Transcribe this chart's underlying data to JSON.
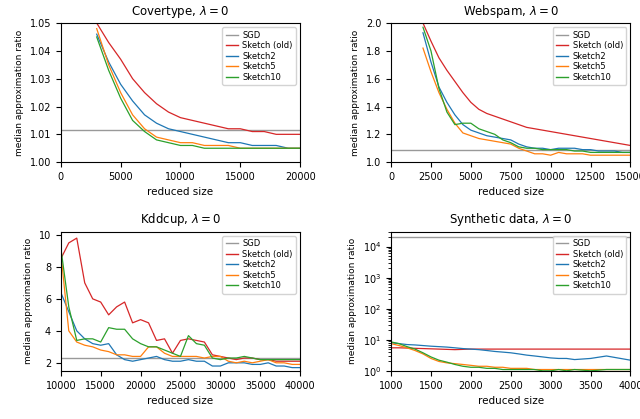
{
  "titles": [
    "Covertype, $\\lambda = 0$",
    "Webspam, $\\lambda = 0$",
    "Kddcup, $\\lambda = 0$",
    "Synthetic data, $\\lambda = 0$"
  ],
  "ylabel": "median approximation ratio",
  "xlabel": "reduced size",
  "colors": {
    "SGD": "#999999",
    "Sketch (old)": "#d62728",
    "Sketch2": "#1f77b4",
    "Sketch5": "#ff7f0e",
    "Sketch10": "#2ca02c"
  },
  "legend_labels": [
    "SGD",
    "Sketch (old)",
    "Sketch2",
    "Sketch5",
    "Sketch10"
  ],
  "covertype": {
    "xlim": [
      0,
      20000
    ],
    "ylim": [
      1.0,
      1.05
    ],
    "yticks": [
      1.0,
      1.01,
      1.02,
      1.03,
      1.04,
      1.05
    ],
    "xticks": [
      0,
      5000,
      10000,
      15000,
      20000
    ],
    "sgd_y": 1.0115,
    "sketch_old_x": [
      3000,
      4000,
      5000,
      6000,
      7000,
      8000,
      9000,
      10000,
      11000,
      12000,
      13000,
      14000,
      15000,
      16000,
      17000,
      18000,
      19000,
      20000
    ],
    "sketch_old_y": [
      1.05,
      1.043,
      1.037,
      1.03,
      1.025,
      1.021,
      1.018,
      1.016,
      1.015,
      1.014,
      1.013,
      1.012,
      1.012,
      1.011,
      1.011,
      1.01,
      1.01,
      1.01
    ],
    "sketch2_x": [
      3000,
      4000,
      5000,
      6000,
      7000,
      8000,
      9000,
      10000,
      11000,
      12000,
      13000,
      14000,
      15000,
      16000,
      17000,
      18000,
      19000,
      20000
    ],
    "sketch2_y": [
      1.046,
      1.036,
      1.028,
      1.022,
      1.017,
      1.014,
      1.012,
      1.011,
      1.01,
      1.009,
      1.008,
      1.007,
      1.007,
      1.006,
      1.006,
      1.006,
      1.005,
      1.005
    ],
    "sketch5_x": [
      3000,
      4000,
      5000,
      6000,
      7000,
      8000,
      9000,
      10000,
      11000,
      12000,
      13000,
      14000,
      15000,
      16000,
      17000,
      18000,
      19000,
      20000
    ],
    "sketch5_y": [
      1.048,
      1.035,
      1.025,
      1.017,
      1.012,
      1.009,
      1.008,
      1.007,
      1.007,
      1.006,
      1.006,
      1.006,
      1.005,
      1.005,
      1.005,
      1.005,
      1.005,
      1.005
    ],
    "sketch10_x": [
      3000,
      4000,
      5000,
      6000,
      7000,
      8000,
      9000,
      10000,
      11000,
      12000,
      13000,
      14000,
      15000,
      16000,
      17000,
      18000,
      19000,
      20000
    ],
    "sketch10_y": [
      1.045,
      1.033,
      1.023,
      1.015,
      1.011,
      1.008,
      1.007,
      1.006,
      1.006,
      1.005,
      1.005,
      1.005,
      1.005,
      1.005,
      1.005,
      1.005,
      1.005,
      1.005
    ]
  },
  "webspam": {
    "xlim": [
      0,
      15000
    ],
    "ylim": [
      1.0,
      2.0
    ],
    "yticks": [
      1.0,
      1.2,
      1.4,
      1.6,
      1.8,
      2.0
    ],
    "xticks": [
      0,
      2500,
      5000,
      7500,
      10000,
      12500,
      15000
    ],
    "sgd_y": 1.09,
    "sketch_old_x": [
      2000,
      2500,
      3000,
      3500,
      4000,
      4500,
      5000,
      5500,
      6000,
      6500,
      7000,
      7500,
      8000,
      8500,
      9000,
      9500,
      10000,
      10500,
      11000,
      11500,
      12000,
      12500,
      13000,
      13500,
      14000,
      14500,
      15000
    ],
    "sketch_old_y": [
      2.0,
      1.87,
      1.75,
      1.66,
      1.58,
      1.5,
      1.43,
      1.38,
      1.35,
      1.33,
      1.31,
      1.29,
      1.27,
      1.25,
      1.24,
      1.23,
      1.22,
      1.21,
      1.2,
      1.19,
      1.18,
      1.17,
      1.16,
      1.15,
      1.14,
      1.13,
      1.12
    ],
    "sketch2_x": [
      2000,
      2500,
      3000,
      3500,
      4000,
      4500,
      5000,
      5500,
      6000,
      6500,
      7000,
      7500,
      8000,
      8500,
      9000,
      9500,
      10000,
      10500,
      11000,
      11500,
      12000,
      12500,
      13000,
      13500,
      14000,
      14500,
      15000
    ],
    "sketch2_y": [
      1.93,
      1.72,
      1.54,
      1.43,
      1.34,
      1.27,
      1.23,
      1.21,
      1.19,
      1.18,
      1.17,
      1.16,
      1.13,
      1.11,
      1.1,
      1.1,
      1.09,
      1.1,
      1.1,
      1.1,
      1.09,
      1.09,
      1.08,
      1.08,
      1.08,
      1.07,
      1.07
    ],
    "sketch5_x": [
      2000,
      2500,
      3000,
      3500,
      4000,
      4500,
      5000,
      5500,
      6000,
      6500,
      7000,
      7500,
      8000,
      8500,
      9000,
      9500,
      10000,
      10500,
      11000,
      11500,
      12000,
      12500,
      13000,
      13500,
      14000,
      14500,
      15000
    ],
    "sketch5_y": [
      1.82,
      1.65,
      1.5,
      1.38,
      1.28,
      1.21,
      1.19,
      1.17,
      1.16,
      1.15,
      1.14,
      1.13,
      1.1,
      1.08,
      1.06,
      1.06,
      1.05,
      1.07,
      1.06,
      1.06,
      1.06,
      1.05,
      1.05,
      1.05,
      1.05,
      1.05,
      1.05
    ],
    "sketch10_x": [
      2000,
      2500,
      3000,
      3500,
      4000,
      4500,
      5000,
      5500,
      6000,
      6500,
      7000,
      7500,
      8000,
      8500,
      9000,
      9500,
      10000,
      10500,
      11000,
      11500,
      12000,
      12500,
      13000,
      13500,
      14000,
      14500,
      15000
    ],
    "sketch10_y": [
      1.97,
      1.8,
      1.53,
      1.36,
      1.27,
      1.28,
      1.28,
      1.24,
      1.22,
      1.2,
      1.16,
      1.14,
      1.11,
      1.1,
      1.1,
      1.09,
      1.09,
      1.09,
      1.09,
      1.08,
      1.08,
      1.07,
      1.07,
      1.07,
      1.07,
      1.07,
      1.07
    ]
  },
  "kddcup": {
    "xlim": [
      10000,
      40000
    ],
    "ylim": [
      1.5,
      10.2
    ],
    "yticks": [
      2,
      4,
      6,
      8,
      10
    ],
    "xticks": [
      10000,
      15000,
      20000,
      25000,
      30000,
      35000,
      40000
    ],
    "sgd_y": 2.28,
    "sketch_old_x": [
      10000,
      11000,
      12000,
      13000,
      14000,
      15000,
      16000,
      17000,
      18000,
      19000,
      20000,
      21000,
      22000,
      23000,
      24000,
      25000,
      26000,
      27000,
      28000,
      29000,
      30000,
      31000,
      32000,
      33000,
      34000,
      35000,
      36000,
      37000,
      38000,
      39000,
      40000
    ],
    "sketch_old_y": [
      8.5,
      9.5,
      9.8,
      7.0,
      6.0,
      5.8,
      5.0,
      5.5,
      5.8,
      4.5,
      4.7,
      4.5,
      3.4,
      3.5,
      2.6,
      3.4,
      3.5,
      3.4,
      3.3,
      2.5,
      2.4,
      2.3,
      2.2,
      2.3,
      2.3,
      2.2,
      2.2,
      2.1,
      2.1,
      2.1,
      2.1
    ],
    "sketch2_x": [
      10000,
      11000,
      12000,
      13000,
      14000,
      15000,
      16000,
      17000,
      18000,
      19000,
      20000,
      21000,
      22000,
      23000,
      24000,
      25000,
      26000,
      27000,
      28000,
      29000,
      30000,
      31000,
      32000,
      33000,
      34000,
      35000,
      36000,
      37000,
      38000,
      39000,
      40000
    ],
    "sketch2_y": [
      6.4,
      5.2,
      4.0,
      3.5,
      3.2,
      3.1,
      3.2,
      2.5,
      2.2,
      2.1,
      2.2,
      2.3,
      2.4,
      2.2,
      2.1,
      2.1,
      2.2,
      2.1,
      2.1,
      1.8,
      1.8,
      2.0,
      2.0,
      2.0,
      1.9,
      1.9,
      2.0,
      1.8,
      1.8,
      1.7,
      1.7
    ],
    "sketch5_x": [
      10000,
      11000,
      12000,
      13000,
      14000,
      15000,
      16000,
      17000,
      18000,
      19000,
      20000,
      21000,
      22000,
      23000,
      24000,
      25000,
      26000,
      27000,
      28000,
      29000,
      30000,
      31000,
      32000,
      33000,
      34000,
      35000,
      36000,
      37000,
      38000,
      39000,
      40000
    ],
    "sketch5_y": [
      8.9,
      4.0,
      3.3,
      3.1,
      3.0,
      2.8,
      2.7,
      2.5,
      2.5,
      2.4,
      2.4,
      3.0,
      3.0,
      2.6,
      2.4,
      2.4,
      2.4,
      2.4,
      2.3,
      2.4,
      2.4,
      2.1,
      2.0,
      2.1,
      2.0,
      2.1,
      2.2,
      2.0,
      2.0,
      1.9,
      1.9
    ],
    "sketch10_x": [
      10000,
      11000,
      12000,
      13000,
      14000,
      15000,
      16000,
      17000,
      18000,
      19000,
      20000,
      21000,
      22000,
      23000,
      24000,
      25000,
      26000,
      27000,
      28000,
      29000,
      30000,
      31000,
      32000,
      33000,
      34000,
      35000,
      36000,
      37000,
      38000,
      39000,
      40000
    ],
    "sketch10_y": [
      9.2,
      5.5,
      3.4,
      3.5,
      3.5,
      3.3,
      4.2,
      4.1,
      4.1,
      3.5,
      3.2,
      3.0,
      3.0,
      2.8,
      2.6,
      2.4,
      3.7,
      3.2,
      3.1,
      2.3,
      2.2,
      2.3,
      2.3,
      2.4,
      2.3,
      2.2,
      2.2,
      2.2,
      2.2,
      2.2,
      2.2
    ]
  },
  "synthetic": {
    "xlim": [
      1000,
      4000
    ],
    "ylim": [
      1.0,
      30000
    ],
    "xticks": [
      1000,
      1500,
      2000,
      2500,
      3000,
      3500,
      4000
    ],
    "sgd_y": 20000,
    "sketch_old_x": [
      1000,
      1100,
      1200,
      1300,
      1400,
      1500,
      1600,
      1700,
      1800,
      1900,
      2000,
      2100,
      2200,
      2300,
      2400,
      2500,
      2600,
      2700,
      2800,
      2900,
      3000,
      3100,
      3200,
      3300,
      3500,
      3700,
      4000
    ],
    "sketch_old_y": [
      5.5,
      5.5,
      5.4,
      5.3,
      5.2,
      5.1,
      5.0,
      4.9,
      4.8,
      4.9,
      5.0,
      5.0,
      5.0,
      5.0,
      5.0,
      5.0,
      5.0,
      5.0,
      5.0,
      5.0,
      5.0,
      5.0,
      5.0,
      5.0,
      5.0,
      5.0,
      5.0
    ],
    "sketch2_x": [
      1000,
      1100,
      1200,
      1300,
      1400,
      1500,
      1600,
      1700,
      1800,
      1900,
      2000,
      2100,
      2200,
      2300,
      2400,
      2500,
      2600,
      2700,
      2800,
      2900,
      3000,
      3100,
      3200,
      3300,
      3500,
      3700,
      4000
    ],
    "sketch2_y": [
      8.0,
      7.5,
      7.0,
      6.8,
      6.5,
      6.2,
      6.0,
      5.8,
      5.5,
      5.2,
      5.0,
      4.8,
      4.5,
      4.2,
      4.0,
      3.8,
      3.5,
      3.2,
      3.0,
      2.8,
      2.6,
      2.5,
      2.5,
      2.3,
      2.5,
      3.0,
      2.2
    ],
    "sketch5_x": [
      1000,
      1100,
      1200,
      1300,
      1400,
      1500,
      1600,
      1700,
      1800,
      1900,
      2000,
      2100,
      2200,
      2300,
      2400,
      2500,
      2600,
      2700,
      2800,
      2900,
      3000,
      3100,
      3200,
      3300,
      3500,
      3700,
      4000
    ],
    "sketch5_y": [
      7.5,
      6.5,
      5.5,
      4.5,
      3.5,
      2.5,
      2.0,
      1.8,
      1.7,
      1.6,
      1.5,
      1.4,
      1.4,
      1.3,
      1.3,
      1.2,
      1.2,
      1.2,
      1.1,
      1.1,
      1.1,
      1.1,
      1.1,
      1.1,
      1.1,
      1.1,
      1.1
    ],
    "sketch10_x": [
      1000,
      1100,
      1200,
      1300,
      1400,
      1500,
      1600,
      1700,
      1800,
      1900,
      2000,
      2100,
      2200,
      2300,
      2400,
      2500,
      2600,
      2700,
      2800,
      2900,
      3000,
      3100,
      3200,
      3300,
      3500,
      3700,
      4000
    ],
    "sketch10_y": [
      8.5,
      7.5,
      6.0,
      5.0,
      3.8,
      2.8,
      2.2,
      1.9,
      1.6,
      1.4,
      1.3,
      1.3,
      1.2,
      1.2,
      1.1,
      1.1,
      1.1,
      1.1,
      1.1,
      1.0,
      1.0,
      1.1,
      1.0,
      1.1,
      1.0,
      1.1,
      1.1
    ]
  }
}
